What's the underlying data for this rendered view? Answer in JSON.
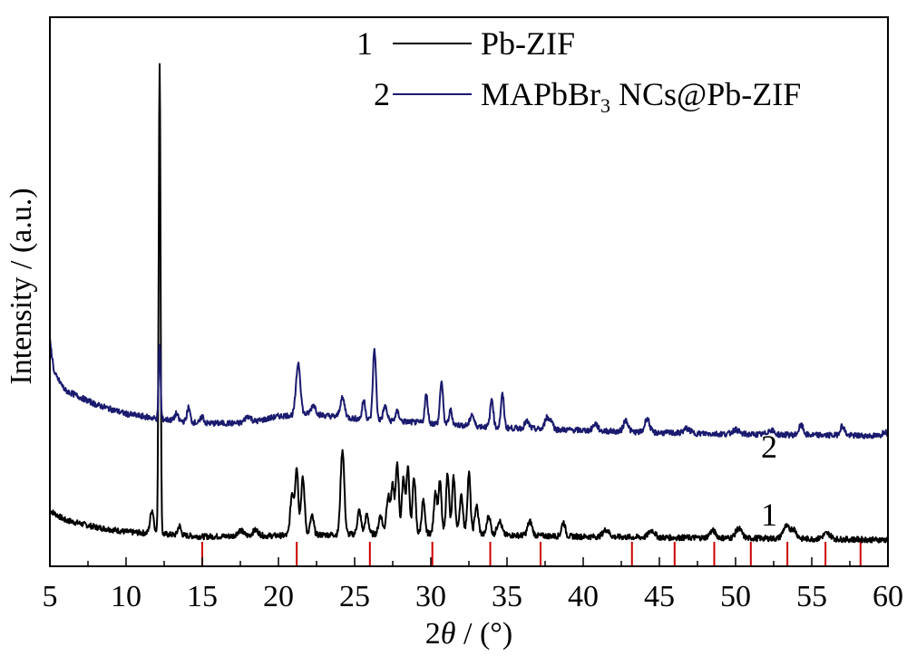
{
  "chart_data": {
    "type": "line",
    "title": "",
    "xlabel_prefix": "2",
    "xlabel_symbol": "θ",
    "xlabel_suffix": " / (°)",
    "ylabel": "Intensity / (a.u.)",
    "xlim": [
      5,
      60
    ],
    "xticks": [
      "5",
      "10",
      "15",
      "20",
      "25",
      "30",
      "35",
      "40",
      "45",
      "50",
      "55",
      "60"
    ],
    "y_tick_labels": "none",
    "legend": {
      "placement": "top-center",
      "entries": [
        {
          "number": "1",
          "label": "Pb-ZIF",
          "color": "#000000"
        },
        {
          "number": "2",
          "label_main": "MAPbBr",
          "label_sub": "3",
          "label_rest": " NCs@Pb-ZIF",
          "color": "#1a1a6e"
        }
      ]
    },
    "series": [
      {
        "name": "Pb-ZIF",
        "curve_label": "1",
        "color": "#000000",
        "baseline": [
          [
            5,
            0.07
          ],
          [
            6,
            0.05
          ],
          [
            8,
            0.035
          ],
          [
            10,
            0.025
          ],
          [
            11.5,
            0.022
          ],
          [
            15,
            0.015
          ],
          [
            20,
            0.017
          ],
          [
            25,
            0.02
          ],
          [
            30,
            0.022
          ],
          [
            35,
            0.018
          ],
          [
            40,
            0.015
          ],
          [
            45,
            0.013
          ],
          [
            50,
            0.012
          ],
          [
            55,
            0.01
          ],
          [
            60,
            0.008
          ]
        ],
        "peaks": [
          [
            11.7,
            0.05,
            0.12
          ],
          [
            12.2,
            1.0,
            0.06
          ],
          [
            13.5,
            0.02,
            0.1
          ],
          [
            17.5,
            0.012,
            0.2
          ],
          [
            18.5,
            0.012,
            0.2
          ],
          [
            20.9,
            0.09,
            0.12
          ],
          [
            21.2,
            0.14,
            0.1
          ],
          [
            21.6,
            0.12,
            0.12
          ],
          [
            22.2,
            0.04,
            0.12
          ],
          [
            24.2,
            0.18,
            0.12
          ],
          [
            25.3,
            0.05,
            0.12
          ],
          [
            25.8,
            0.04,
            0.12
          ],
          [
            26.7,
            0.04,
            0.12
          ],
          [
            27.2,
            0.08,
            0.12
          ],
          [
            27.5,
            0.1,
            0.1
          ],
          [
            27.8,
            0.15,
            0.1
          ],
          [
            28.2,
            0.12,
            0.1
          ],
          [
            28.5,
            0.14,
            0.1
          ],
          [
            28.9,
            0.12,
            0.1
          ],
          [
            29.5,
            0.07,
            0.1
          ],
          [
            30.3,
            0.09,
            0.1
          ],
          [
            30.6,
            0.11,
            0.1
          ],
          [
            31.1,
            0.13,
            0.1
          ],
          [
            31.5,
            0.12,
            0.1
          ],
          [
            32.0,
            0.08,
            0.12
          ],
          [
            32.5,
            0.13,
            0.1
          ],
          [
            33.0,
            0.06,
            0.12
          ],
          [
            33.8,
            0.04,
            0.12
          ],
          [
            34.5,
            0.03,
            0.15
          ],
          [
            36.5,
            0.03,
            0.15
          ],
          [
            38.7,
            0.03,
            0.12
          ],
          [
            41.5,
            0.015,
            0.2
          ],
          [
            44.5,
            0.015,
            0.2
          ],
          [
            48.5,
            0.015,
            0.2
          ],
          [
            50.2,
            0.02,
            0.2
          ],
          [
            53.3,
            0.025,
            0.2
          ],
          [
            53.8,
            0.02,
            0.2
          ],
          [
            56.0,
            0.012,
            0.25
          ]
        ]
      },
      {
        "name": "MAPbBr3 NCs@Pb-ZIF",
        "curve_label": "2",
        "color": "#1a1a6e",
        "baseline": [
          [
            5,
            0.43
          ],
          [
            5.3,
            0.36
          ],
          [
            6,
            0.325
          ],
          [
            8,
            0.295
          ],
          [
            10,
            0.275
          ],
          [
            12,
            0.265
          ],
          [
            15,
            0.255
          ],
          [
            18,
            0.255
          ],
          [
            20,
            0.27
          ],
          [
            22,
            0.275
          ],
          [
            25,
            0.265
          ],
          [
            30,
            0.255
          ],
          [
            35,
            0.245
          ],
          [
            40,
            0.24
          ],
          [
            45,
            0.235
          ],
          [
            50,
            0.232
          ],
          [
            55,
            0.23
          ],
          [
            60,
            0.228
          ]
        ],
        "peaks": [
          [
            12.2,
            0.16,
            0.06
          ],
          [
            13.3,
            0.015,
            0.1
          ],
          [
            14.1,
            0.03,
            0.1
          ],
          [
            15.0,
            0.015,
            0.1
          ],
          [
            18.0,
            0.015,
            0.2
          ],
          [
            21.3,
            0.11,
            0.14
          ],
          [
            22.3,
            0.02,
            0.15
          ],
          [
            24.2,
            0.04,
            0.15
          ],
          [
            25.6,
            0.04,
            0.1
          ],
          [
            26.3,
            0.15,
            0.1
          ],
          [
            27.0,
            0.03,
            0.12
          ],
          [
            27.8,
            0.02,
            0.12
          ],
          [
            29.7,
            0.06,
            0.1
          ],
          [
            30.7,
            0.09,
            0.1
          ],
          [
            31.3,
            0.03,
            0.1
          ],
          [
            32.7,
            0.025,
            0.12
          ],
          [
            34.0,
            0.06,
            0.1
          ],
          [
            34.7,
            0.07,
            0.1
          ],
          [
            36.3,
            0.015,
            0.15
          ],
          [
            37.6,
            0.025,
            0.12
          ],
          [
            37.9,
            0.02,
            0.12
          ],
          [
            40.8,
            0.015,
            0.15
          ],
          [
            42.8,
            0.025,
            0.15
          ],
          [
            44.2,
            0.03,
            0.15
          ],
          [
            46.8,
            0.01,
            0.2
          ],
          [
            50.0,
            0.01,
            0.2
          ],
          [
            52.3,
            0.01,
            0.2
          ],
          [
            54.3,
            0.02,
            0.15
          ],
          [
            57.0,
            0.02,
            0.15
          ],
          [
            59.8,
            0.01,
            0.15
          ]
        ]
      }
    ],
    "reference_markers": {
      "color": "#cc0000",
      "positions": [
        15.0,
        21.2,
        26.0,
        30.1,
        33.9,
        37.2,
        43.2,
        46.0,
        48.6,
        51.0,
        53.4,
        55.9,
        58.2
      ]
    }
  }
}
